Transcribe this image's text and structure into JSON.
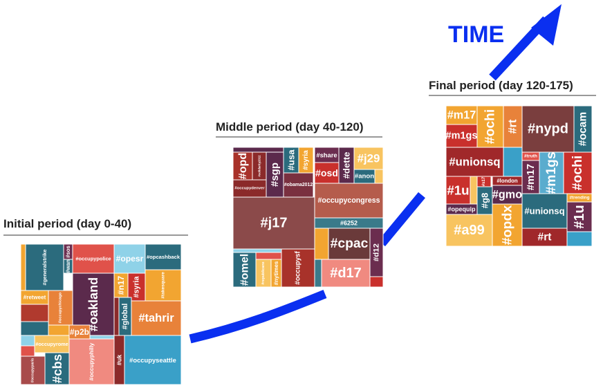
{
  "title": "TIME",
  "panels": [
    {
      "title": "Initial period (day 0-40)",
      "cells": [
        "#generalstrike",
        "#sos",
        "#occupypolice",
        "#wan",
        "#oakland",
        "#retweet",
        "#occupychicago",
        "#opesr",
        "#opcashback",
        "#n17",
        "#syria",
        "#takesquare",
        "#tahrir",
        "#global",
        "#p2b",
        "#occupyrome",
        "#occupyphilly",
        "#uk",
        "#occupyseattle",
        "#occupyparis",
        "#cbs"
      ]
    },
    {
      "title": "Middle period (day 40-120)",
      "cells": [
        "#opd",
        "#solidarity2012",
        "#sgp",
        "#usa",
        "#syria",
        "#occupydenver",
        "#obama2012",
        "#share",
        "#osd",
        "#dette",
        "#j29",
        "#anon",
        "#j17",
        "#occupycongress",
        "#6252",
        "#cpac",
        "#d12",
        "#omel",
        "#republicans",
        "#nytimes",
        "#occupysf",
        "#d17"
      ]
    },
    {
      "title": "Final period (day 120-175)",
      "cells": [
        "#m17",
        "#m1gs",
        "#ochi",
        "#rt",
        "#nypd",
        "#ocam",
        "#unionsq",
        "#truth",
        "#m17",
        "#m1gs",
        "#ochi",
        "#1u",
        "#s17",
        "#london",
        "#gmo",
        "#g8",
        "#opequip",
        "#unionsq",
        "#trending",
        "#1u",
        "#a99",
        "#opdx",
        "#rt"
      ]
    }
  ]
}
